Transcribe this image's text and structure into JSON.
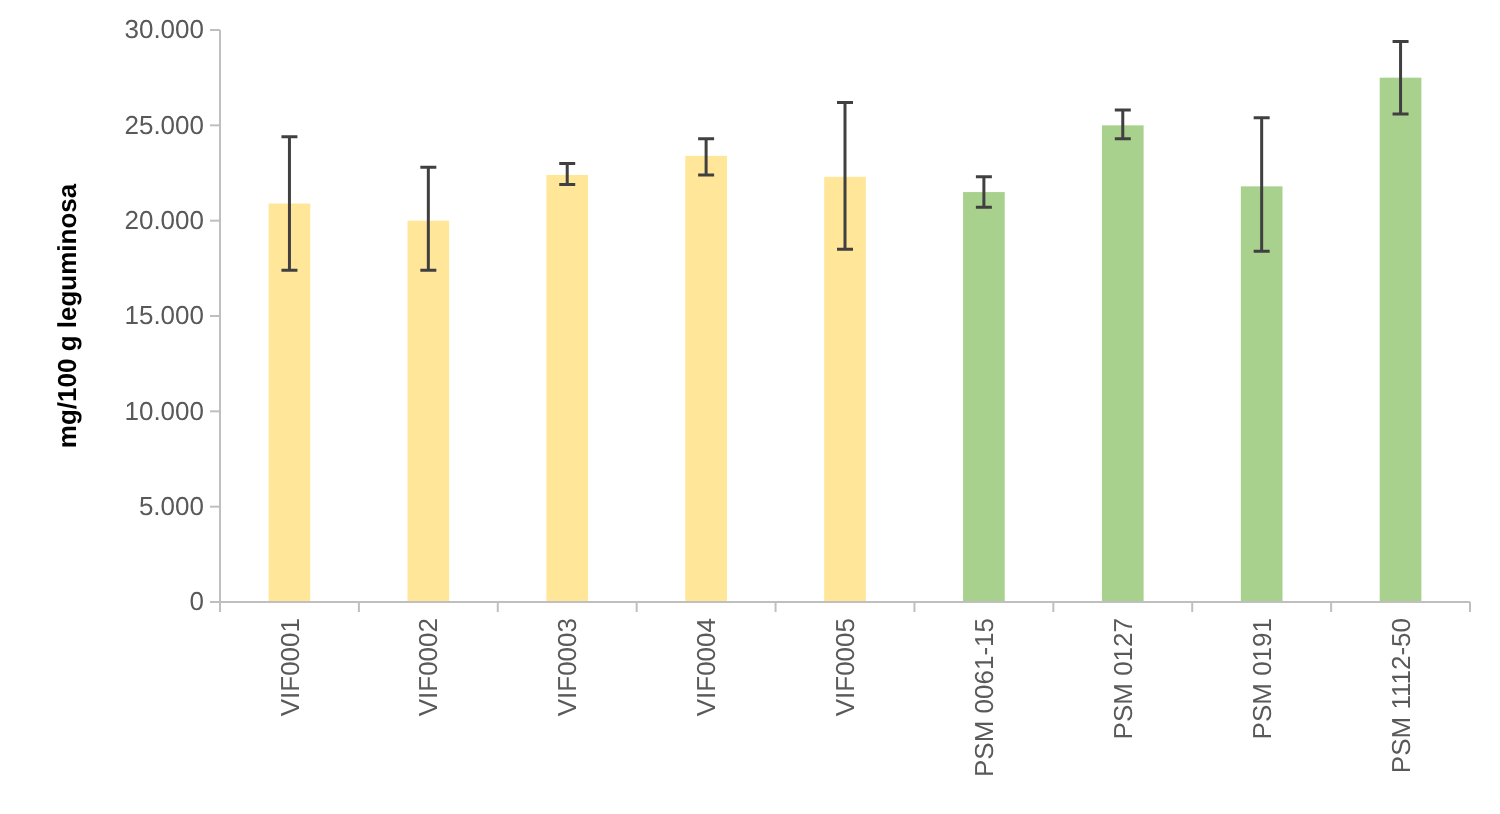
{
  "chart_data": {
    "type": "bar",
    "ylabel": "mg/100 g leguminosa",
    "categories": [
      "VIF0001",
      "VIF0002",
      "VIF0003",
      "VIF0004",
      "VIF0005",
      "PSM 0061-15",
      "PSM 0127",
      "PSM 0191",
      "PSM 1112-50"
    ],
    "values": [
      20900,
      20000,
      22400,
      23400,
      22300,
      21500,
      25000,
      21800,
      27500
    ],
    "colors": [
      "#ffe699",
      "#ffe699",
      "#ffe699",
      "#ffe699",
      "#ffe699",
      "#a9d18e",
      "#a9d18e",
      "#a9d18e",
      "#a9d18e"
    ],
    "errors": [
      [
        17400,
        24400
      ],
      [
        17400,
        22800
      ],
      [
        21900,
        23000
      ],
      [
        22400,
        24300
      ],
      [
        18500,
        26200
      ],
      [
        20700,
        22300
      ],
      [
        24300,
        25800
      ],
      [
        18400,
        25400
      ],
      [
        25600,
        29400
      ]
    ],
    "ylim": [
      0,
      30000
    ],
    "yticks": [
      {
        "value": 0,
        "label": "0"
      },
      {
        "value": 5000,
        "label": "5.000"
      },
      {
        "value": 10000,
        "label": "10.000"
      },
      {
        "value": 15000,
        "label": "15.000"
      },
      {
        "value": 20000,
        "label": "20.000"
      },
      {
        "value": 25000,
        "label": "25.000"
      },
      {
        "value": 30000,
        "label": "30.000"
      }
    ]
  }
}
